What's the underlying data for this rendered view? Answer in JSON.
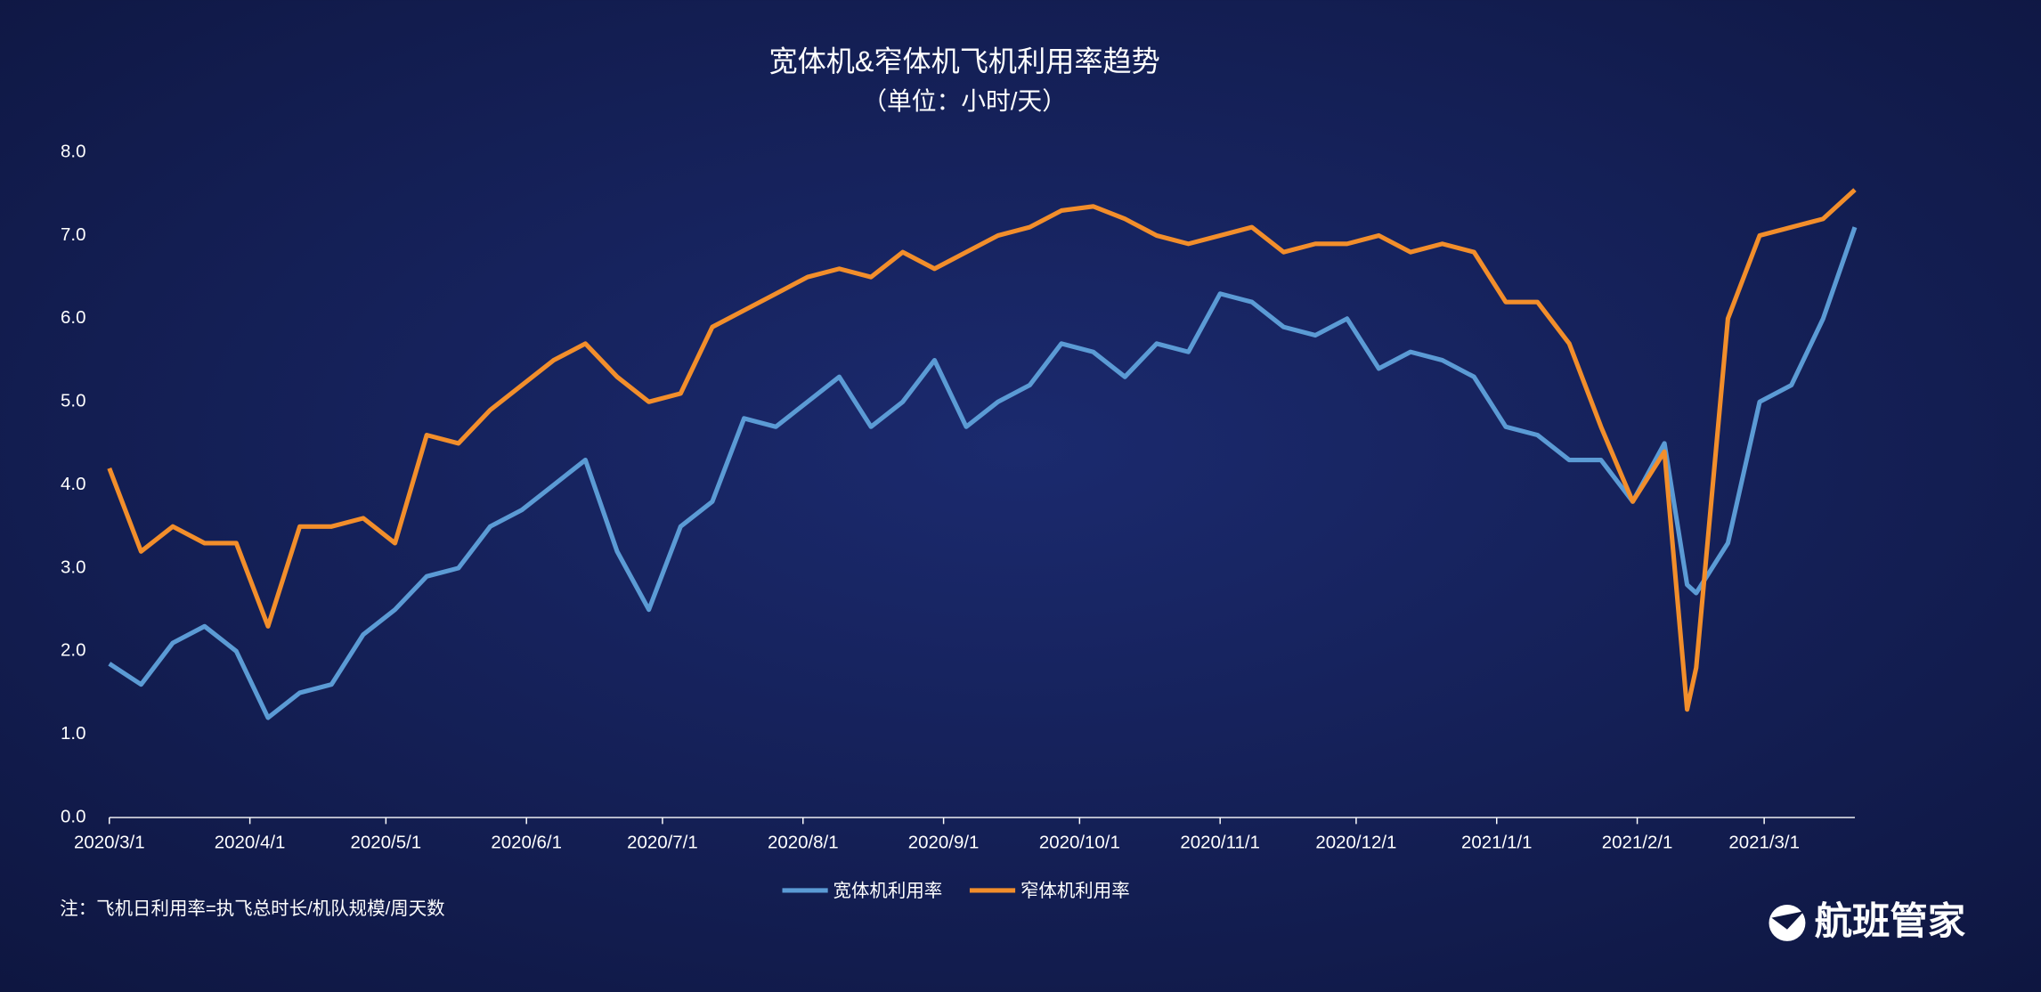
{
  "chart_data": {
    "type": "line",
    "title": "宽体机&窄体机飞机利用率趋势",
    "subtitle": "（单位：小时/天）",
    "note": "注：飞机日利用率=执飞总时长/机队规模/周天数",
    "brand": "航班管家",
    "x": [
      "2020/3/1",
      "2020/3/8",
      "2020/3/15",
      "2020/3/22",
      "2020/3/29",
      "2020/4/5",
      "2020/4/12",
      "2020/4/19",
      "2020/4/26",
      "2020/5/3",
      "2020/5/10",
      "2020/5/17",
      "2020/5/24",
      "2020/5/31",
      "2020/6/7",
      "2020/6/14",
      "2020/6/21",
      "2020/6/28",
      "2020/7/5",
      "2020/7/12",
      "2020/7/19",
      "2020/7/26",
      "2020/8/2",
      "2020/8/9",
      "2020/8/16",
      "2020/8/23",
      "2020/8/30",
      "2020/9/6",
      "2020/9/13",
      "2020/9/20",
      "2020/9/27",
      "2020/10/4",
      "2020/10/11",
      "2020/10/18",
      "2020/10/25",
      "2020/11/1",
      "2020/11/8",
      "2020/11/15",
      "2020/11/22",
      "2020/11/29",
      "2020/12/6",
      "2020/12/13",
      "2020/12/20",
      "2020/12/27",
      "2021/1/3",
      "2021/1/10",
      "2021/1/17",
      "2021/1/24",
      "2021/1/31",
      "2021/2/7",
      "2021/2/12",
      "2021/2/14",
      "2021/2/21",
      "2021/2/28",
      "2021/3/7",
      "2021/3/14",
      "2021/3/21"
    ],
    "series": [
      {
        "name": "宽体机利用率",
        "color": "#5b9bd5",
        "values": [
          1.85,
          1.6,
          2.1,
          2.3,
          2.0,
          1.2,
          1.5,
          1.6,
          2.2,
          2.5,
          2.9,
          3.0,
          3.5,
          3.7,
          4.0,
          4.3,
          3.2,
          2.5,
          3.5,
          3.8,
          4.8,
          4.7,
          5.0,
          5.3,
          4.7,
          5.0,
          5.5,
          4.7,
          5.0,
          5.2,
          5.7,
          5.6,
          5.3,
          5.7,
          5.6,
          6.3,
          6.2,
          5.9,
          5.8,
          6.0,
          5.4,
          5.6,
          5.5,
          5.3,
          4.7,
          4.6,
          4.3,
          4.3,
          3.8,
          4.5,
          2.8,
          2.7,
          3.3,
          5.0,
          5.2,
          6.0,
          7.1
        ]
      },
      {
        "name": "窄体机利用率",
        "color": "#f28e2b",
        "values": [
          4.2,
          3.2,
          3.5,
          3.3,
          3.3,
          2.3,
          3.5,
          3.5,
          3.6,
          3.3,
          4.6,
          4.5,
          4.9,
          5.2,
          5.5,
          5.7,
          5.3,
          5.0,
          5.1,
          5.9,
          6.1,
          6.3,
          6.5,
          6.6,
          6.5,
          6.8,
          6.6,
          6.8,
          7.0,
          7.1,
          7.3,
          7.35,
          7.2,
          7.0,
          6.9,
          7.0,
          7.1,
          6.8,
          6.9,
          6.9,
          7.0,
          6.8,
          6.9,
          6.8,
          6.2,
          6.2,
          5.7,
          4.7,
          3.8,
          4.4,
          1.3,
          1.8,
          6.0,
          7.0,
          7.1,
          7.2,
          7.55
        ]
      }
    ],
    "xlim": [
      "2020/3/1",
      "2021/3/21"
    ],
    "xticks": [
      "2020/3/1",
      "2020/4/1",
      "2020/5/1",
      "2020/6/1",
      "2020/7/1",
      "2020/8/1",
      "2020/9/1",
      "2020/10/1",
      "2020/11/1",
      "2020/12/1",
      "2021/1/1",
      "2021/2/1",
      "2021/3/1"
    ],
    "ylim": [
      0,
      8
    ],
    "yticks": [
      {
        "value": 0,
        "label": "0.0"
      },
      {
        "value": 1,
        "label": "1.0"
      },
      {
        "value": 2,
        "label": "2.0"
      },
      {
        "value": 3,
        "label": "3.0"
      },
      {
        "value": 4,
        "label": "4.0"
      },
      {
        "value": 5,
        "label": "5.0"
      },
      {
        "value": 6,
        "label": "6.0"
      },
      {
        "value": 7,
        "label": "7.0"
      },
      {
        "value": 8,
        "label": "8.0"
      }
    ],
    "grid": false
  }
}
